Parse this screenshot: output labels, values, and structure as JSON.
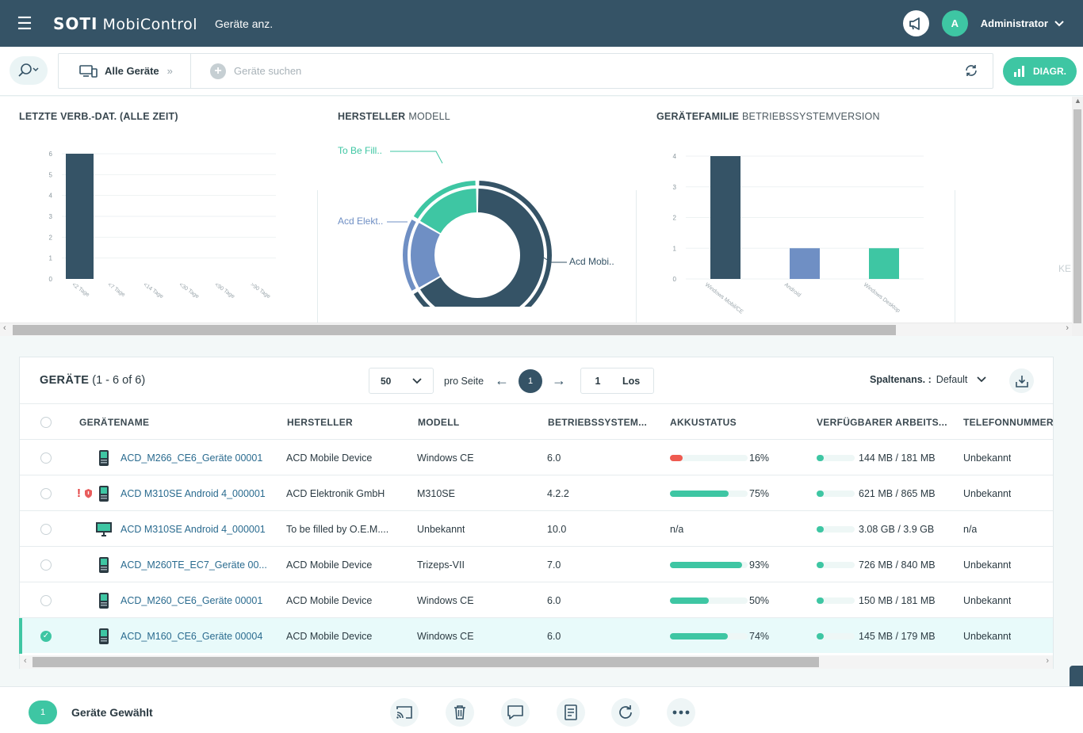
{
  "header": {
    "brand": "SOTI",
    "product": "MobiControl",
    "subtitle": "Geräte anz.",
    "avatar_initial": "A",
    "username": "Administrator"
  },
  "search": {
    "scope_label": "Alle Geräte",
    "placeholder": "Geräte suchen",
    "diag_label": "DIAGR."
  },
  "charts": {
    "kei_text": "KEI",
    "chart1": {
      "title": "LETZTE VERB.-DAT. (ALLE ZEIT)"
    },
    "chart2": {
      "title": "HERSTELLER",
      "title_secondary": "MODELL"
    },
    "chart3": {
      "title": "GERÄTEFAMILIE",
      "title_secondary": "BETRIEBSSYSTEMVERSION"
    }
  },
  "chart_data": [
    {
      "type": "bar",
      "title": "LETZTE VERB.-DAT. (ALLE ZEIT)",
      "categories": [
        "<2 Tage",
        "<7 Tage",
        "<14 Tage",
        "<30 Tage",
        "<90 Tage",
        ">90 Tage"
      ],
      "values": [
        6,
        0,
        0,
        0,
        0,
        0
      ],
      "y_ticks": [
        0,
        1,
        2,
        3,
        4,
        5,
        6
      ],
      "ylim": [
        0,
        6
      ],
      "colors": [
        "#355366"
      ]
    },
    {
      "type": "pie",
      "title": "HERSTELLER MODELL",
      "outer": {
        "labels": [
          "ACD Mobile Device",
          "ACD Elektronik GmbH",
          "To be filled by O.E.M."
        ],
        "values": [
          4,
          1,
          1
        ],
        "colors": [
          "#355366",
          "#6f8fc4",
          "#3ec6a3"
        ]
      },
      "inner": {
        "values": [
          4,
          1,
          1
        ],
        "colors": [
          "#355366",
          "#6f8fc4",
          "#3ec6a3"
        ]
      },
      "callouts": [
        "To Be Fill..",
        "Acd Elekt..",
        "Acd Mobi.."
      ]
    },
    {
      "type": "bar",
      "title": "GERÄTEFAMILIE BETRIEBSSYSTEMVERSION",
      "categories": [
        "Windows Mobil/CE",
        "Android",
        "Windows Desktop"
      ],
      "values": [
        4,
        1,
        1
      ],
      "y_ticks": [
        0,
        1,
        2,
        3,
        4
      ],
      "ylim": [
        0,
        4
      ],
      "colors": [
        "#355366",
        "#6f8fc4",
        "#3ec6a3"
      ]
    }
  ],
  "devices": {
    "title": "GERÄTE",
    "count_text": "(1 - 6 of 6)",
    "per_page": "50",
    "per_page_label": "pro Seite",
    "current_page": "1",
    "goto_page": "1",
    "goto_label": "Los",
    "col_settings_label": "Spaltenans. :",
    "col_settings_value": "Default",
    "columns": [
      "GERÄTENAME",
      "HERSTELLER",
      "MODELL",
      "BETRIEBSSYSTEM...",
      "AKKUSTATUS",
      "VERFÜGBARER ARBEITS...",
      "TELEFONNUMMER"
    ],
    "rows": [
      {
        "name": "ACD_M266_CE6_Geräte 00001",
        "maker": "ACD Mobile Device",
        "model": "Windows CE",
        "os": "6.0",
        "battery": "16%",
        "battery_value": 16,
        "memory": "144 MB / 181 MB",
        "phone": "Unbekannt",
        "device_icon": "handheld-icon",
        "selected": false,
        "alert": false
      },
      {
        "name": "ACD M310SE Android 4_000001",
        "maker": "ACD Elektronik GmbH",
        "model": "M310SE",
        "os": "4.2.2",
        "battery": "75%",
        "battery_value": 75,
        "memory": "621 MB / 865 MB",
        "phone": "Unbekannt",
        "device_icon": "handheld-icon",
        "selected": false,
        "alert": true
      },
      {
        "name": "ACD M310SE Android 4_000001",
        "maker": "To be filled by O.E.M....",
        "model": "Unbekannt",
        "os": "10.0",
        "battery": "n/a",
        "battery_value": null,
        "memory": "3.08 GB / 3.9 GB",
        "phone": "n/a",
        "device_icon": "desktop-icon",
        "selected": false,
        "alert": false
      },
      {
        "name": "ACD_M260TE_EC7_Geräte 00...",
        "maker": "ACD Mobile Device",
        "model": "Trizeps-VII",
        "os": "7.0",
        "battery": "93%",
        "battery_value": 93,
        "memory": "726 MB / 840 MB",
        "phone": "Unbekannt",
        "device_icon": "handheld-icon",
        "selected": false,
        "alert": false
      },
      {
        "name": "ACD_M260_CE6_Geräte 00001",
        "maker": "ACD Mobile Device",
        "model": "Windows CE",
        "os": "6.0",
        "battery": "50%",
        "battery_value": 50,
        "memory": "150 MB / 181 MB",
        "phone": "Unbekannt",
        "device_icon": "handheld-icon",
        "selected": false,
        "alert": false
      },
      {
        "name": "ACD_M160_CE6_Geräte 00004",
        "maker": "ACD Mobile Device",
        "model": "Windows CE",
        "os": "6.0",
        "battery": "74%",
        "battery_value": 74,
        "memory": "145 MB / 179 MB",
        "phone": "Unbekannt",
        "device_icon": "handheld-icon",
        "selected": true,
        "alert": false
      }
    ]
  },
  "actionbar": {
    "selected_count": "1",
    "selected_label": "Geräte Gewählt",
    "actions": [
      "cast-icon",
      "trash-icon",
      "message-icon",
      "document-icon",
      "refresh-icon",
      "more-icon"
    ]
  },
  "colors": {
    "header_bg": "#355366",
    "accent": "#3ec6a3",
    "series_blue": "#6f8fc4",
    "low_battery": "#ef5a50"
  }
}
